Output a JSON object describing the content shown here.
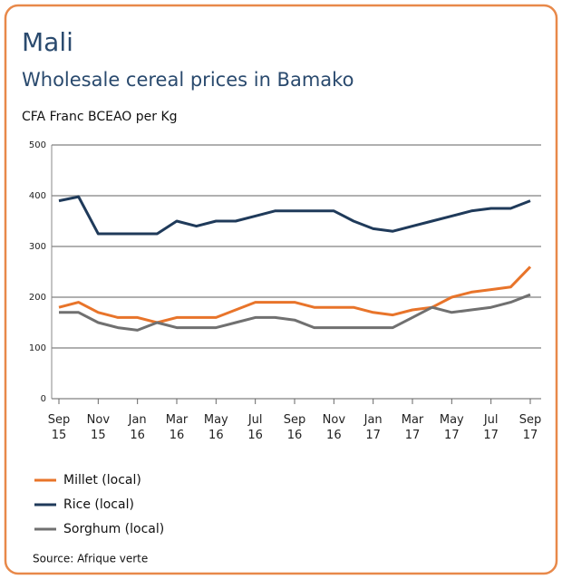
{
  "chart_data": {
    "type": "line",
    "title": "Mali",
    "subtitle": "Wholesale cereal prices in Bamako",
    "y_label": "CFA Franc BCEAO per Kg",
    "source": "Source: Afrique verte",
    "categories": [
      "Sep 15",
      null,
      "Nov 15",
      null,
      "Jan 16",
      null,
      "Mar 16",
      null,
      "May 16",
      null,
      "Jul 16",
      null,
      "Sep 16",
      null,
      "Nov 16",
      null,
      "Jan 17",
      null,
      "Mar 17",
      null,
      "May 17",
      null,
      "Jul 17",
      null,
      "Sep 17"
    ],
    "series": [
      {
        "name": "Millet (local)",
        "color": "#e8742a",
        "values": [
          180,
          190,
          170,
          160,
          160,
          150,
          160,
          160,
          160,
          175,
          190,
          190,
          190,
          180,
          180,
          180,
          170,
          165,
          175,
          180,
          200,
          210,
          215,
          220,
          260
        ]
      },
      {
        "name": "Rice (local)",
        "color": "#1f3a5a",
        "values": [
          390,
          398,
          325,
          325,
          325,
          325,
          350,
          340,
          350,
          350,
          360,
          370,
          370,
          370,
          370,
          350,
          335,
          330,
          340,
          350,
          360,
          370,
          375,
          375,
          390
        ]
      },
      {
        "name": "Sorghum (local)",
        "color": "#707070",
        "values": [
          170,
          170,
          150,
          140,
          135,
          150,
          140,
          140,
          140,
          150,
          160,
          160,
          155,
          140,
          140,
          140,
          140,
          140,
          160,
          180,
          170,
          175,
          180,
          190,
          205
        ]
      }
    ],
    "ylim": [
      0,
      500
    ],
    "yticks": [
      0,
      100,
      200,
      300,
      400,
      500
    ],
    "grid": true
  }
}
